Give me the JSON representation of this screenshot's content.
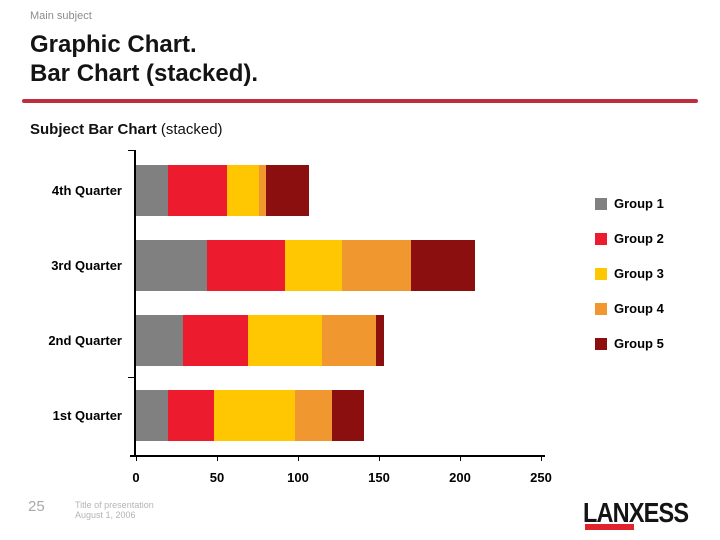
{
  "header": {
    "eyebrow": "Main subject",
    "title_line1": "Graphic Chart.",
    "title_line2": "Bar Chart (stacked).",
    "subtitle_bold": "Subject Bar Chart",
    "subtitle_rest": " (stacked)"
  },
  "chart_data": {
    "type": "bar",
    "orientation": "horizontal",
    "stacked": true,
    "title": "Subject Bar Chart (stacked)",
    "categories": [
      "4th Quarter",
      "3rd Quarter",
      "2nd Quarter",
      "1st Quarter"
    ],
    "series": [
      {
        "name": "Group 1",
        "color": "#808080",
        "values": [
          20,
          44,
          29,
          20
        ]
      },
      {
        "name": "Group 2",
        "color": "#EC1B2E",
        "values": [
          36,
          48,
          40,
          28
        ]
      },
      {
        "name": "Group 3",
        "color": "#FFC702",
        "values": [
          20,
          35,
          46,
          50
        ]
      },
      {
        "name": "Group 4",
        "color": "#F0982F",
        "values": [
          4,
          43,
          33,
          23
        ]
      },
      {
        "name": "Group 5",
        "color": "#8B0F0F",
        "values": [
          27,
          39,
          5,
          20
        ]
      }
    ],
    "x_ticks": [
      0,
      50,
      100,
      150,
      200,
      250
    ],
    "xlim": [
      0,
      253
    ],
    "legend_position": "right",
    "grid": false,
    "xlabel": "",
    "ylabel": ""
  },
  "footer": {
    "page_number": "25",
    "line1": "Title of presentation",
    "line2": "August 1, 2006",
    "logo_text": "LANXESS"
  },
  "colors": {
    "title_rule": "#BE2F3E",
    "logo_red": "#E1232B",
    "axis": "#000000"
  }
}
